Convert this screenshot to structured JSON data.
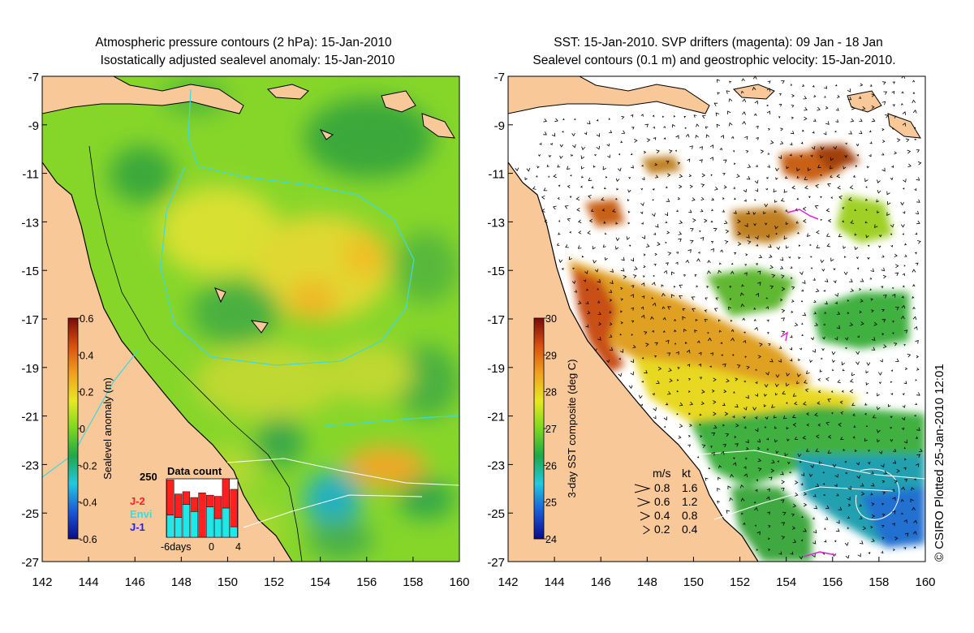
{
  "left_panel": {
    "title_line1": "Atmospheric pressure contours (2 hPa): 15-Jan-2010",
    "title_line2": "Isostatically adjusted sealevel anomaly: 15-Jan-2010",
    "colorbar": {
      "label": "Sealevel anomaly (m)",
      "ticks": [
        "0.6",
        "0.4",
        "0.2",
        "0",
        "-0.2",
        "-0.4",
        "-0.6"
      ],
      "min": -0.6,
      "max": 0.6,
      "colors": [
        "#0a0a8a",
        "#1a5ad8",
        "#22c8e0",
        "#1ea84a",
        "#7ad820",
        "#e8e820",
        "#f0a020",
        "#d85010",
        "#7a0a0a"
      ]
    },
    "data_count": {
      "title": "Data count",
      "ymax_label": "250",
      "legend": [
        "J-2",
        "Envi",
        "J-1"
      ],
      "legend_colors": [
        "#ff2020",
        "#20e8e8",
        "#2020ff"
      ],
      "x_labels": [
        "-6days",
        "0",
        "4"
      ],
      "bars": [
        {
          "j1": 0,
          "envi": 95,
          "j2": 150
        },
        {
          "j1": 0,
          "envi": 85,
          "j2": 100
        },
        {
          "j1": 0,
          "envi": 140,
          "j2": 55
        },
        {
          "j1": 0,
          "envi": 110,
          "j2": 60
        },
        {
          "j1": 0,
          "envi": 0,
          "j2": 190
        },
        {
          "j1": 0,
          "envi": 130,
          "j2": 50
        },
        {
          "j1": 0,
          "envi": 80,
          "j2": 95
        },
        {
          "j1": 0,
          "envi": 125,
          "j2": 125
        },
        {
          "j1": 0,
          "envi": 45,
          "j2": 160
        }
      ],
      "bars_max": 250
    }
  },
  "right_panel": {
    "title_line1": "SST: 15-Jan-2010. SVP drifters (magenta): 09 Jan - 18 Jan",
    "title_line2": "Sealevel contours (0.1 m) and geostrophic velocity: 15-Jan-2010.",
    "colorbar": {
      "label": "3-day SST composite (deg C)",
      "ticks": [
        "30",
        "29",
        "28",
        "27",
        "26",
        "25",
        "24"
      ],
      "min": 24,
      "max": 30,
      "colors": [
        "#0a0a8a",
        "#1a5ad8",
        "#22c8e0",
        "#1ea84a",
        "#7ad820",
        "#e8e820",
        "#f0a020",
        "#d85010",
        "#7a0a0a"
      ]
    },
    "velocity_legend": {
      "header_ms": "m/s",
      "header_kt": "kt",
      "rows": [
        {
          "ms": "0.8",
          "kt": "1.6"
        },
        {
          "ms": "0.6",
          "kt": "1.2"
        },
        {
          "ms": "0.4",
          "kt": "0.8"
        },
        {
          "ms": "0.2",
          "kt": "0.4"
        }
      ]
    },
    "credit": "© CSIRO Plotted 25-Jan-2010 12:01"
  },
  "axes": {
    "lat_ticks": [
      "-7",
      "-9",
      "-11",
      "-13",
      "-15",
      "-17",
      "-19",
      "-21",
      "-23",
      "-25",
      "-27"
    ],
    "lon_ticks": [
      "142",
      "144",
      "146",
      "148",
      "150",
      "152",
      "154",
      "156",
      "158",
      "160"
    ]
  },
  "colors": {
    "land": "#f8c898",
    "coast": "#000000",
    "pressure_contour": "#40d8e0",
    "sealevel_contour": "#ffffff",
    "drifter": "#e020e0"
  }
}
